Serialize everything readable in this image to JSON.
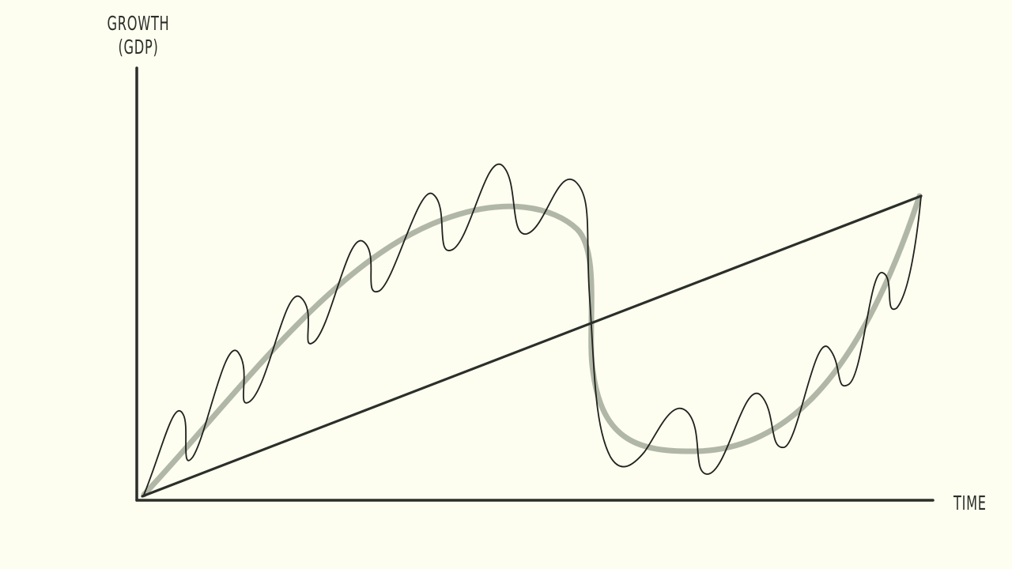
{
  "y_axis": {
    "label_line1": "GROWTH",
    "label_line2": "(GDP)"
  },
  "x_axis": {
    "label": "TIME"
  },
  "colors": {
    "background": "#fdfdf0",
    "axes": "#2b2f29",
    "trend_line": "#2b2f29",
    "smooth_cycle": "#a3aa9a",
    "oscillation": "#1f221d"
  }
}
